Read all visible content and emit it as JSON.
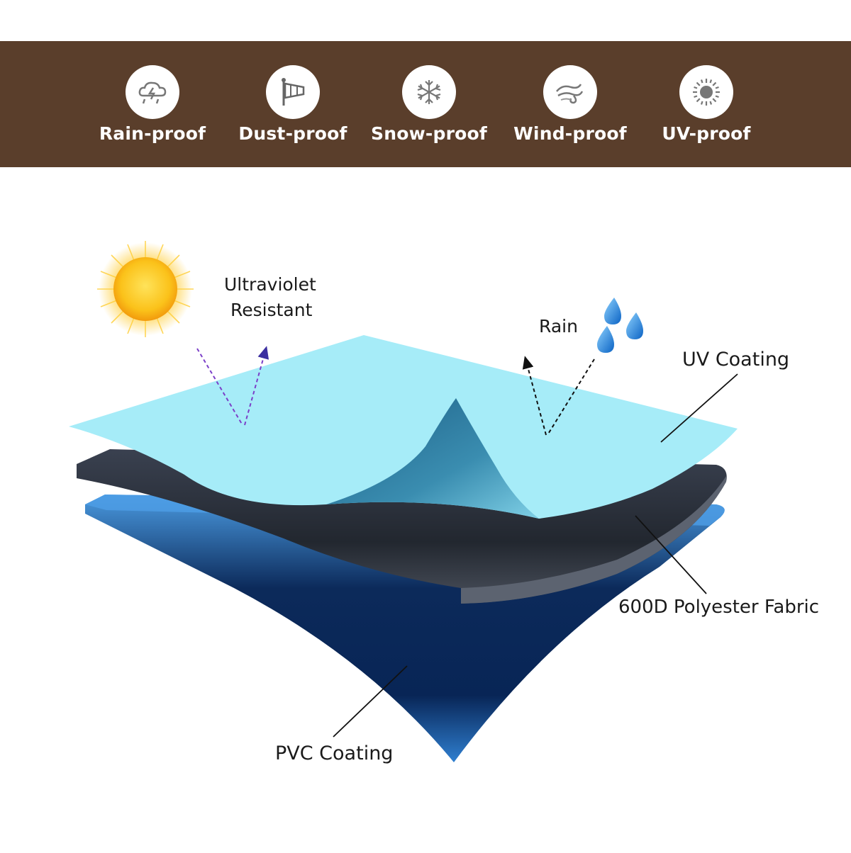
{
  "banner": {
    "background": "#5a3e2b",
    "features": [
      {
        "label": "Rain-proof",
        "icon": "rain-cloud-icon"
      },
      {
        "label": "Dust-proof",
        "icon": "windsock-icon"
      },
      {
        "label": "Snow-proof",
        "icon": "snowflake-icon"
      },
      {
        "label": "Wind-proof",
        "icon": "wind-swirl-icon"
      },
      {
        "label": "UV-proof",
        "icon": "sun-icon"
      }
    ]
  },
  "diagram": {
    "uv_resistant_line1": "Ultraviolet",
    "uv_resistant_line2": "Resistant",
    "rain": "Rain",
    "layers": {
      "uv_coating": "UV Coating",
      "polyester_fabric": "600D Polyester Fabric",
      "pvc_coating": "PVC Coating"
    },
    "colors": {
      "uv_layer": "#a6ecf8",
      "fabric_layer": "#2a3140",
      "pvc_layer": "#3f8fd8",
      "sun": "#fbc21a",
      "raindrop": "#2f8fe0",
      "uv_arrow": "#7b3fc8"
    }
  }
}
